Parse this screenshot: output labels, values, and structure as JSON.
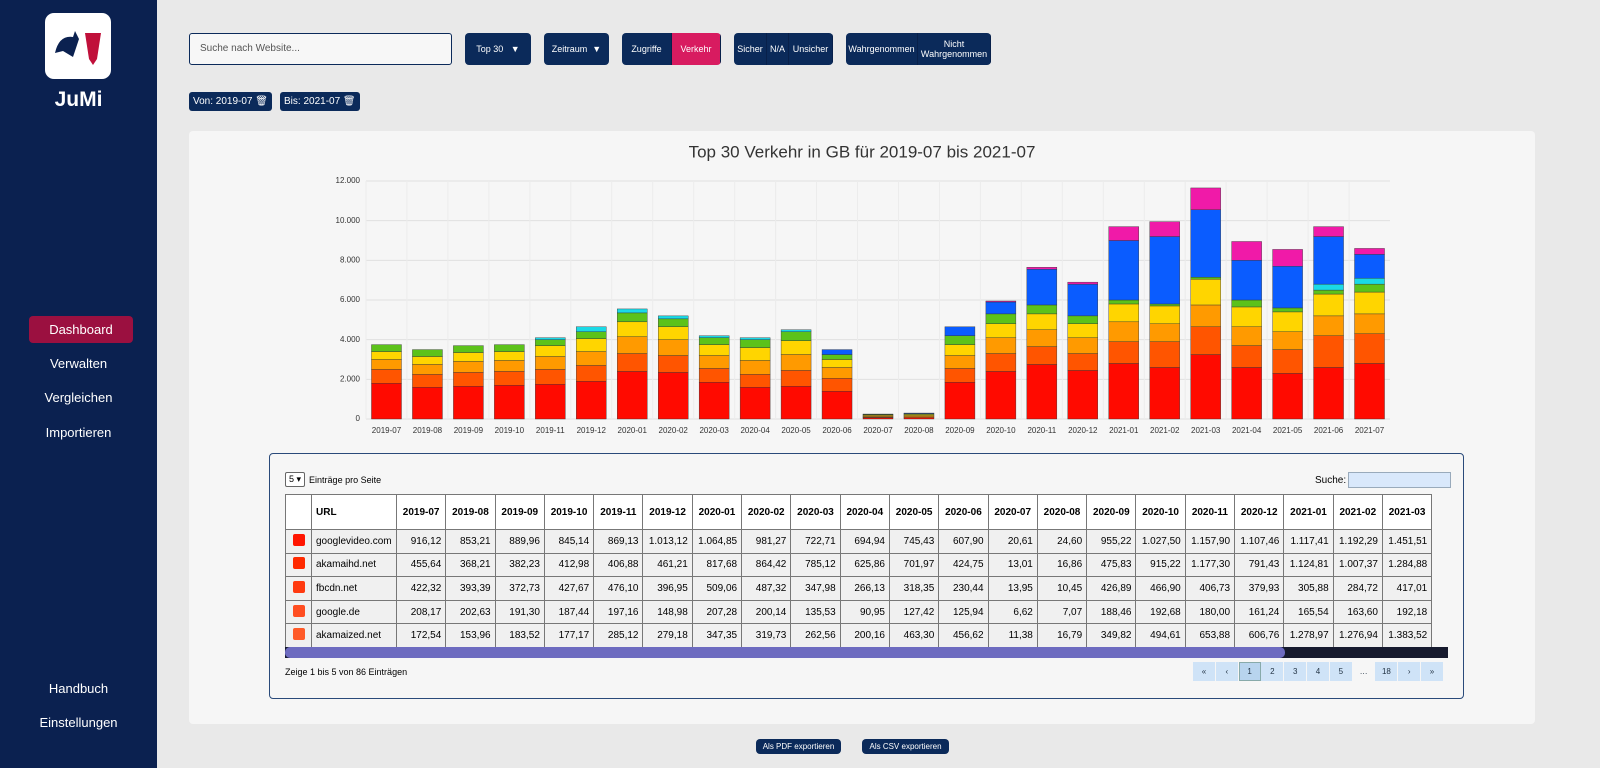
{
  "sidebar": {
    "app_name": "JuMi",
    "nav": [
      "Dashboard",
      "Verwalten",
      "Vergleichen",
      "Importieren"
    ],
    "bottom_nav": [
      "Handbuch",
      "Einstellungen"
    ]
  },
  "toolbar": {
    "search_placeholder": "Suche nach Website...",
    "top": "Top 30",
    "period": "Zeitraum",
    "metric": [
      "Zugriffe",
      "Verkehr"
    ],
    "security": [
      "Sicher",
      "N/A",
      "Unsicher"
    ],
    "perception": [
      "Wahrgenommen",
      "Nicht Wahrgenommen"
    ],
    "from": "Von: 2019-07",
    "to": "Bis: 2021-07"
  },
  "chart_data": {
    "type": "stacked-bar",
    "title": "Top 30 Verkehr in GB für 2019-07 bis 2021-07",
    "categories": [
      "2019-07",
      "2019-08",
      "2019-09",
      "2019-10",
      "2019-11",
      "2019-12",
      "2020-01",
      "2020-02",
      "2020-03",
      "2020-04",
      "2020-05",
      "2020-06",
      "2020-07",
      "2020-08",
      "2020-09",
      "2020-10",
      "2020-11",
      "2020-12",
      "2021-01",
      "2021-02",
      "2021-03",
      "2021-04",
      "2021-05",
      "2021-06",
      "2021-07"
    ],
    "ylim": [
      0,
      12000
    ],
    "yticks": [
      0,
      {
        "value": 2000,
        "label": "2.000"
      },
      {
        "value": 4000,
        "label": "4.000"
      },
      {
        "value": 6000,
        "label": "6.000"
      },
      {
        "value": 8000,
        "label": "8.000"
      },
      {
        "value": 10000,
        "label": "10.000"
      },
      {
        "value": 12000,
        "label": "12.000"
      }
    ],
    "grid": true,
    "series": [
      {
        "color": "#ff0a00",
        "values": [
          1800,
          1600,
          1650,
          1700,
          1750,
          1900,
          2400,
          2350,
          1850,
          1600,
          1650,
          1400,
          60,
          60,
          1850,
          2400,
          2750,
          2450,
          2800,
          2600,
          3250,
          2600,
          2300,
          2600,
          2800
        ]
      },
      {
        "color": "#ff5500",
        "values": [
          700,
          650,
          700,
          700,
          750,
          800,
          900,
          850,
          700,
          650,
          800,
          650,
          40,
          50,
          700,
          900,
          900,
          850,
          1100,
          1300,
          1400,
          1100,
          1200,
          1600,
          1500
        ]
      },
      {
        "color": "#ff9a00",
        "values": [
          500,
          500,
          550,
          550,
          650,
          700,
          850,
          800,
          650,
          700,
          800,
          550,
          50,
          60,
          650,
          800,
          850,
          800,
          1000,
          900,
          1100,
          950,
          900,
          1000,
          1000
        ]
      },
      {
        "color": "#ffd500",
        "values": [
          400,
          400,
          450,
          450,
          550,
          650,
          750,
          650,
          550,
          650,
          700,
          400,
          50,
          60,
          550,
          700,
          800,
          700,
          900,
          900,
          1300,
          1000,
          1000,
          1100,
          1100
        ]
      },
      {
        "color": "#5cc21a",
        "values": [
          350,
          350,
          350,
          350,
          300,
          350,
          450,
          400,
          350,
          400,
          450,
          250,
          30,
          40,
          450,
          500,
          450,
          400,
          200,
          100,
          100,
          350,
          200,
          200,
          400
        ]
      },
      {
        "color": "#1ad9e6",
        "values": [
          0,
          0,
          0,
          0,
          100,
          250,
          200,
          150,
          100,
          100,
          100,
          0,
          0,
          0,
          0,
          0,
          0,
          0,
          0,
          0,
          0,
          0,
          0,
          300,
          300
        ]
      },
      {
        "color": "#0a5cff",
        "values": [
          0,
          0,
          0,
          0,
          0,
          0,
          0,
          0,
          0,
          0,
          0,
          250,
          20,
          30,
          450,
          600,
          1800,
          1600,
          3000,
          3400,
          3400,
          2000,
          2100,
          2400,
          1200
        ]
      },
      {
        "color": "#f01aa8",
        "values": [
          0,
          0,
          0,
          0,
          0,
          0,
          0,
          0,
          0,
          0,
          0,
          0,
          0,
          0,
          0,
          50,
          100,
          100,
          700,
          750,
          1100,
          950,
          850,
          500,
          300
        ]
      }
    ]
  },
  "table": {
    "page_size": "5",
    "page_size_label": "Einträge pro Seite",
    "search_label": "Suche:",
    "columns": [
      "URL",
      "2019-07",
      "2019-08",
      "2019-09",
      "2019-10",
      "2019-11",
      "2019-12",
      "2020-01",
      "2020-02",
      "2020-03",
      "2020-04",
      "2020-05",
      "2020-06",
      "2020-07",
      "2020-08",
      "2020-09",
      "2020-10",
      "2020-11",
      "2020-12",
      "2021-01",
      "2021-02",
      "2021-03"
    ],
    "row_colors": [
      "#ff1500",
      "#ff2a00",
      "#ff3a10",
      "#ff4d20",
      "#ff5a28"
    ],
    "rows": [
      [
        "googlevideo.com",
        "916,12",
        "853,21",
        "889,96",
        "845,14",
        "869,13",
        "1.013,12",
        "1.064,85",
        "981,27",
        "722,71",
        "694,94",
        "745,43",
        "607,90",
        "20,61",
        "24,60",
        "955,22",
        "1.027,50",
        "1.157,90",
        "1.107,46",
        "1.117,41",
        "1.192,29",
        "1.451,51"
      ],
      [
        "akamaihd.net",
        "455,64",
        "368,21",
        "382,23",
        "412,98",
        "406,88",
        "461,21",
        "817,68",
        "864,42",
        "785,12",
        "625,86",
        "701,97",
        "424,75",
        "13,01",
        "16,86",
        "475,83",
        "915,22",
        "1.177,30",
        "791,43",
        "1.124,81",
        "1.007,37",
        "1.284,88"
      ],
      [
        "fbcdn.net",
        "422,32",
        "393,39",
        "372,73",
        "427,67",
        "476,10",
        "396,95",
        "509,06",
        "487,32",
        "347,98",
        "266,13",
        "318,35",
        "230,44",
        "13,95",
        "10,45",
        "426,89",
        "466,90",
        "406,73",
        "379,93",
        "305,88",
        "284,72",
        "417,01"
      ],
      [
        "google.de",
        "208,17",
        "202,63",
        "191,30",
        "187,44",
        "197,16",
        "148,98",
        "207,28",
        "200,14",
        "135,53",
        "90,95",
        "127,42",
        "125,94",
        "6,62",
        "7,07",
        "188,46",
        "192,68",
        "180,00",
        "161,24",
        "165,54",
        "163,60",
        "192,18"
      ],
      [
        "akamaized.net",
        "172,54",
        "153,96",
        "183,52",
        "177,17",
        "285,12",
        "279,18",
        "347,35",
        "319,73",
        "262,56",
        "200,16",
        "463,30",
        "456,62",
        "11,38",
        "16,79",
        "349,82",
        "494,61",
        "653,88",
        "606,76",
        "1.278,97",
        "1.276,94",
        "1.383,52"
      ]
    ],
    "info": "Zeige 1 bis 5 von 86 Einträgen",
    "pagination": [
      "«",
      "‹",
      "1",
      "2",
      "3",
      "4",
      "5",
      "…",
      "18",
      "›",
      "»"
    ]
  },
  "export": [
    "Als PDF exportieren",
    "Als CSV exportieren"
  ]
}
